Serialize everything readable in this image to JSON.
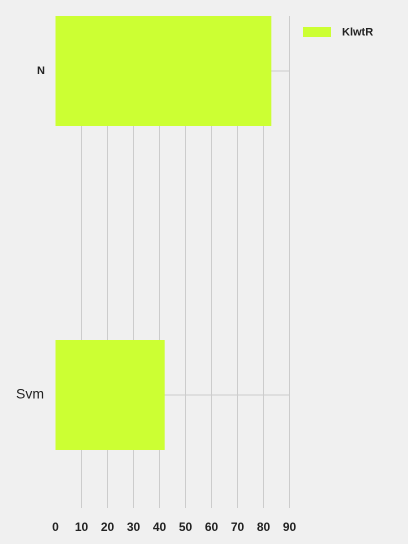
{
  "chart_data": {
    "type": "bar",
    "orientation": "horizontal",
    "categories": [
      "N",
      "Svm"
    ],
    "series": [
      {
        "name": "KlwtR",
        "values": [
          83,
          42
        ]
      }
    ],
    "xlim": [
      0,
      90
    ],
    "xticks": [
      0,
      10,
      20,
      30,
      40,
      50,
      60,
      70,
      80,
      90
    ],
    "grid": true,
    "legend_position": "top-right",
    "bar_color": "#ccff33",
    "background_color": "#f0f0f0",
    "grid_color": "#cccccc"
  }
}
